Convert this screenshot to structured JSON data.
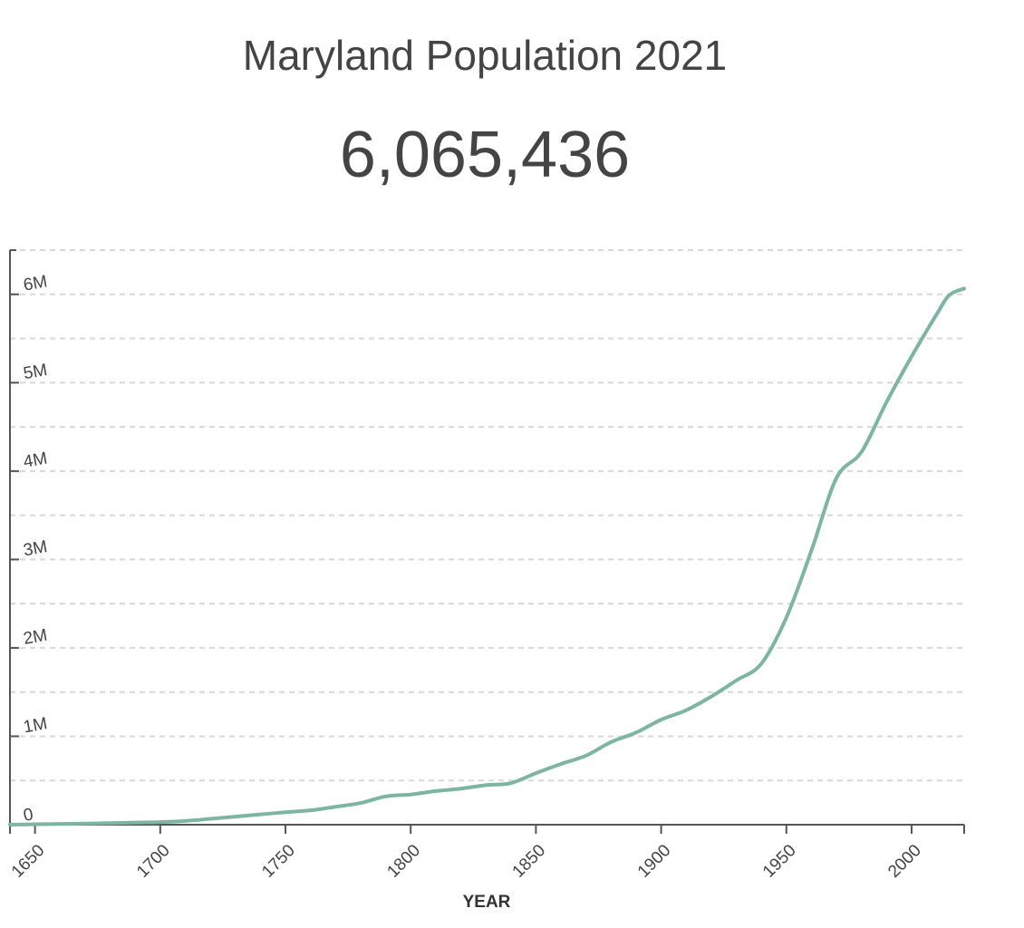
{
  "header": {
    "title": "Maryland Population 2021",
    "value": "6,065,436"
  },
  "colors": {
    "line": "#7cb5a2",
    "axis": "#555555",
    "grid": "#d8d8d8",
    "text": "#444444"
  },
  "chart_data": {
    "type": "line",
    "title": "Maryland Population 2021",
    "xlabel": "YEAR",
    "ylabel": "",
    "xlim": [
      1640,
      2021
    ],
    "ylim": [
      0,
      6500000
    ],
    "grid": true,
    "x_ticks": [
      1650,
      1700,
      1750,
      1800,
      1850,
      1900,
      1950,
      2000
    ],
    "x_tick_labels": [
      "1650",
      "1700",
      "1750",
      "1800",
      "1850",
      "1900",
      "1950",
      "2000"
    ],
    "y_ticks": [
      0,
      1000000,
      2000000,
      3000000,
      4000000,
      5000000,
      6000000
    ],
    "y_tick_labels": [
      "0",
      "1M",
      "2M",
      "3M",
      "4M",
      "5M",
      "6M"
    ],
    "y_minor_grid": [
      500000,
      1500000,
      2500000,
      3500000,
      4500000,
      5500000,
      6500000
    ],
    "series": [
      {
        "name": "Population",
        "x": [
          1640,
          1650,
          1660,
          1670,
          1680,
          1690,
          1700,
          1710,
          1720,
          1730,
          1740,
          1750,
          1760,
          1770,
          1780,
          1790,
          1800,
          1810,
          1820,
          1830,
          1840,
          1850,
          1860,
          1870,
          1880,
          1890,
          1900,
          1910,
          1920,
          1930,
          1940,
          1950,
          1960,
          1970,
          1980,
          1990,
          2000,
          2010,
          2015,
          2021
        ],
        "y": [
          583,
          4504,
          8426,
          13226,
          17904,
          24024,
          29604,
          42741,
          66133,
          91113,
          116093,
          141073,
          162267,
          202599,
          245474,
          319728,
          341548,
          380546,
          407350,
          447040,
          470019,
          583034,
          687049,
          780894,
          934943,
          1042390,
          1188044,
          1295346,
          1449661,
          1631526,
          1821244,
          2343001,
          3100689,
          3922399,
          4216975,
          4781468,
          5296486,
          5773552,
          5990000,
          6065436
        ]
      }
    ]
  }
}
